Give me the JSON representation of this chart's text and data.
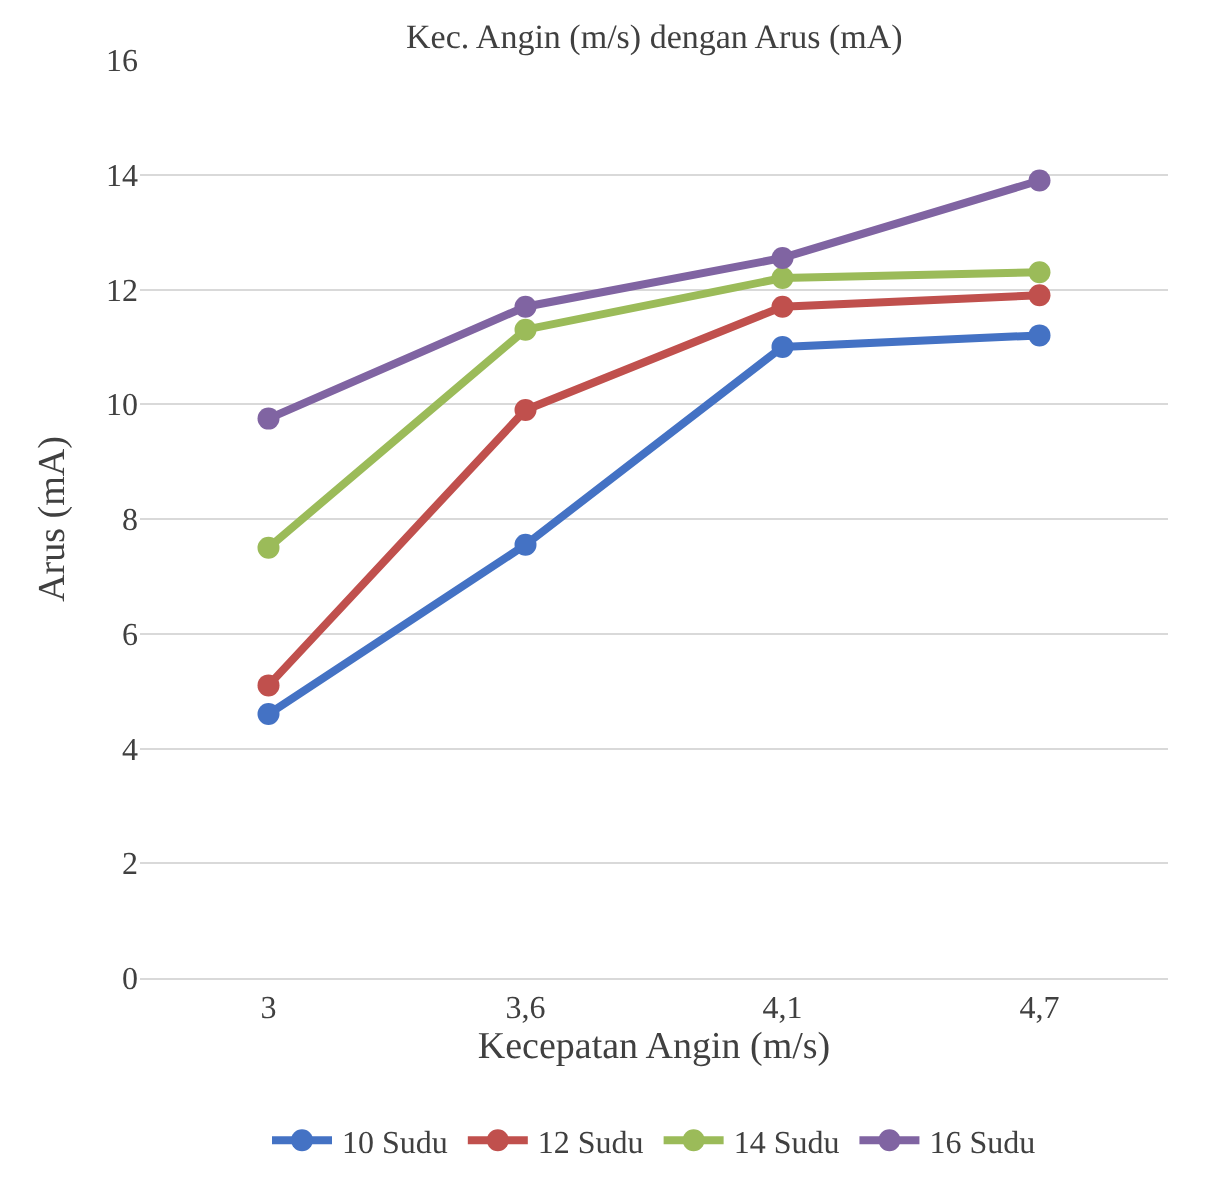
{
  "chart_data": {
    "type": "line",
    "title": "Kec. Angin (m/s) dengan Arus (mA)",
    "xlabel": "Kecepatan Angin (m/s)",
    "ylabel": "Arus (mA)",
    "categories": [
      "3",
      "3,6",
      "4,1",
      "4,7"
    ],
    "series": [
      {
        "name": "10 Sudu",
        "color": "#4472c4",
        "values": [
          4.6,
          7.55,
          11.0,
          11.2
        ]
      },
      {
        "name": "12 Sudu",
        "color": "#c0504d",
        "values": [
          5.1,
          9.9,
          11.7,
          11.9
        ]
      },
      {
        "name": "14 Sudu",
        "color": "#9bbb59",
        "values": [
          7.5,
          11.3,
          12.2,
          12.3
        ]
      },
      {
        "name": "16 Sudu",
        "color": "#8064a2",
        "values": [
          9.75,
          11.7,
          12.55,
          13.9
        ]
      }
    ],
    "ylim": [
      0,
      16
    ],
    "yticks": [
      0,
      2,
      4,
      6,
      8,
      10,
      12,
      14,
      16
    ],
    "grid": "y",
    "legend": "bottom",
    "marker": "circle",
    "line_style": "solid"
  }
}
